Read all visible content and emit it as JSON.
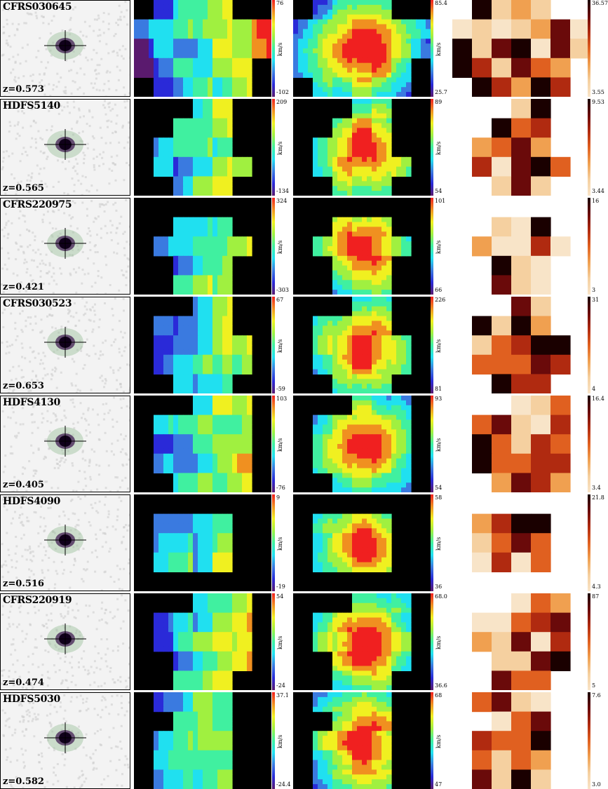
{
  "figure": {
    "rows": [
      {
        "name": "CFRS030645",
        "redshift": "z=0.573",
        "vf": {
          "max": "76",
          "min": "-102"
        },
        "sig": {
          "max": "85.4",
          "min": "25.7"
        },
        "flux": {
          "max": "36.57",
          "min": "3.55"
        },
        "unit": "km/s"
      },
      {
        "name": "HDFS5140",
        "redshift": "z=0.565",
        "vf": {
          "max": "209",
          "min": "-134"
        },
        "sig": {
          "max": "89",
          "min": "54"
        },
        "flux": {
          "max": "9.53",
          "min": "3.44"
        },
        "unit": "km/s"
      },
      {
        "name": "CFRS220975",
        "redshift": "z=0.421",
        "vf": {
          "max": "324",
          "min": "-303"
        },
        "sig": {
          "max": "101",
          "min": "66"
        },
        "flux": {
          "max": "16",
          "min": "3"
        },
        "unit": "km/s"
      },
      {
        "name": "CFRS030523",
        "redshift": "z=0.653",
        "vf": {
          "max": "67",
          "min": "-59"
        },
        "sig": {
          "max": "226",
          "min": "81"
        },
        "flux": {
          "max": "31",
          "min": "4"
        },
        "unit": "km/s"
      },
      {
        "name": "HDFS4130",
        "redshift": "z=0.405",
        "vf": {
          "max": "103",
          "min": "-76"
        },
        "sig": {
          "max": "93",
          "min": "54"
        },
        "flux": {
          "max": "16.4",
          "min": "3.4"
        },
        "unit": "km/s"
      },
      {
        "name": "HDFS4090",
        "redshift": "z=0.516",
        "vf": {
          "max": "9",
          "min": "-19"
        },
        "sig": {
          "max": "58",
          "min": "36"
        },
        "flux": {
          "max": "21.8",
          "min": "4.3"
        },
        "unit": "km/s"
      },
      {
        "name": "CFRS220919",
        "redshift": "z=0.474",
        "vf": {
          "max": "54",
          "min": "-24"
        },
        "sig": {
          "max": "68.0",
          "min": "36.6"
        },
        "flux": {
          "max": "87",
          "min": "5"
        },
        "unit": "km/s"
      },
      {
        "name": "HDFS5030",
        "redshift": "z=0.582",
        "vf": {
          "max": "37.1",
          "min": "-24.4"
        },
        "sig": {
          "max": "68",
          "min": "47"
        },
        "flux": {
          "max": "7.6",
          "min": "3.0"
        },
        "unit": "km/s"
      }
    ]
  }
}
